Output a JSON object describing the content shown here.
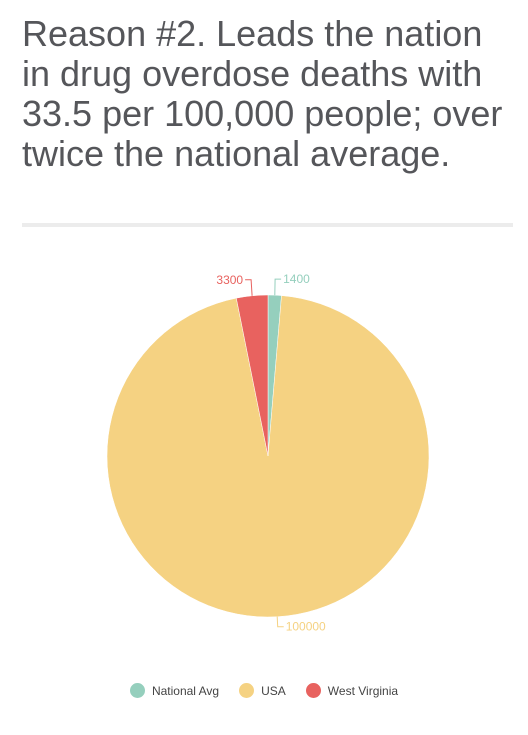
{
  "header": {
    "title": "Reason #2. Leads the nation in drug overdose deaths with 33.5 per 100,000 people; over twice the national average."
  },
  "chart_data": {
    "type": "pie",
    "start_angle_deg": 0,
    "direction": "clockwise",
    "slices": [
      {
        "name": "National Avg",
        "label": "1400",
        "value": 1400,
        "color": "#95cfbd"
      },
      {
        "name": "USA",
        "label": "100000",
        "value": 100000,
        "color": "#f5d282"
      },
      {
        "name": "West Virginia",
        "label": "3300",
        "value": 3300,
        "color": "#e8625f"
      }
    ],
    "legend_position": "bottom-center"
  }
}
